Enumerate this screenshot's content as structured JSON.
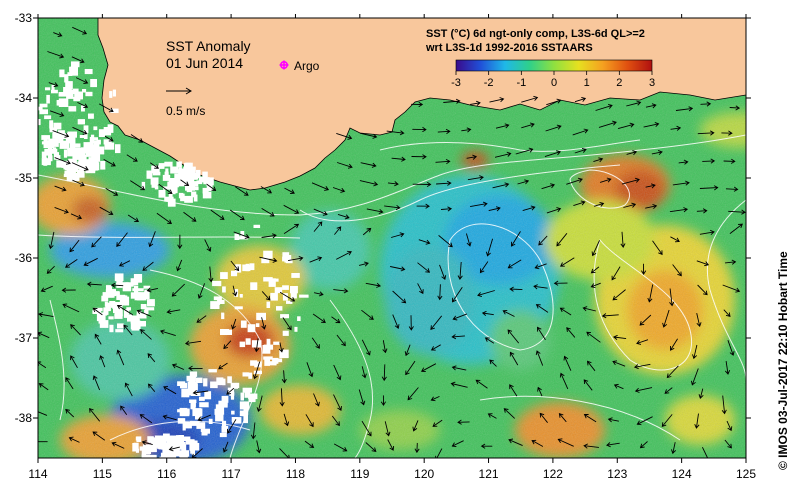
{
  "map": {
    "title": "SST Anomaly",
    "date": "01 Jun 2014",
    "legend_argo": "Argo",
    "velocity_scale_label": "0.5 m/s",
    "product_line1": "SST (°C) 6d ngt-only comp, L3S-6d QL>=2",
    "product_line2": "wrt L3S-1d 1992-2016 SSTAARS",
    "credit": "© IMOS 03-Jul-2017 22:10 Hobart Time",
    "colorbar": {
      "ticks": [
        "-3",
        "-2",
        "-1",
        "0",
        "1",
        "2",
        "3"
      ],
      "range": [
        -3,
        3
      ],
      "stops": [
        "#3a0a8c",
        "#2050d8",
        "#1fb8e8",
        "#2fd08a",
        "#8fe040",
        "#e6e020",
        "#f5a020",
        "#e05010",
        "#b01010"
      ]
    },
    "x_ticks": [
      "114",
      "115",
      "116",
      "117",
      "118",
      "119",
      "120",
      "121",
      "122",
      "123",
      "124",
      "125"
    ],
    "y_ticks": [
      "-33",
      "-34",
      "-35",
      "-36",
      "-37",
      "-38"
    ],
    "x_range": [
      114,
      125
    ],
    "y_range": [
      -38.5,
      -33
    ],
    "land_color": "#f8c79c",
    "nodata_color": "#ffffff"
  }
}
